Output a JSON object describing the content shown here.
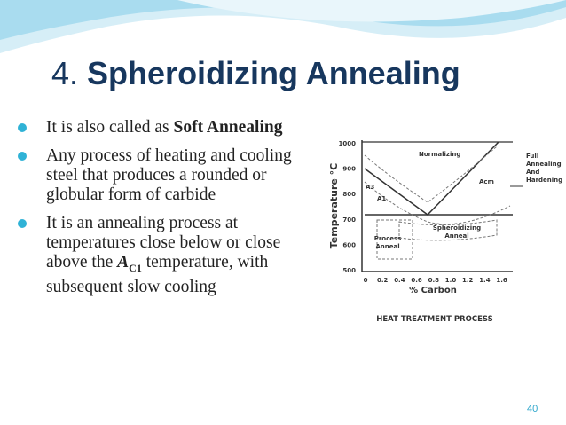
{
  "slide": {
    "title": {
      "number": "4.",
      "text": "Spheroidizing Annealing"
    },
    "bullets": [
      {
        "parts": [
          "It is also called as ",
          "Soft Annealing"
        ]
      },
      {
        "parts": [
          "Any process of heating and cooling steel that produces a rounded or globular form of carbide"
        ]
      },
      {
        "parts": [
          "It is an annealing process at temperatures close below or close above the ",
          "A",
          "C1",
          " temperature, with subsequent slow cooling"
        ]
      }
    ],
    "figure": {
      "y_label": "Temperature °C",
      "y_ticks": [
        "1000",
        "900",
        "800",
        "700",
        "600",
        "500"
      ],
      "x_label": "% Carbon",
      "x_ticks": [
        "0",
        "0.2",
        "0.4",
        "0.6",
        "0.8",
        "1.0",
        "1.2",
        "1.4",
        "1.6"
      ],
      "labels": {
        "normalizing": "Normalizing",
        "acm": "Acm",
        "a3": "A3",
        "a1": "A1",
        "full": [
          "Full",
          "Annealing",
          "And",
          "Hardening"
        ],
        "spheroidizing": [
          "Spheroidizing",
          "Anneal"
        ],
        "process": [
          "Process",
          "Anneal"
        ]
      },
      "caption": "HEAT TREATMENT PROCESS"
    },
    "page_number": "40"
  }
}
